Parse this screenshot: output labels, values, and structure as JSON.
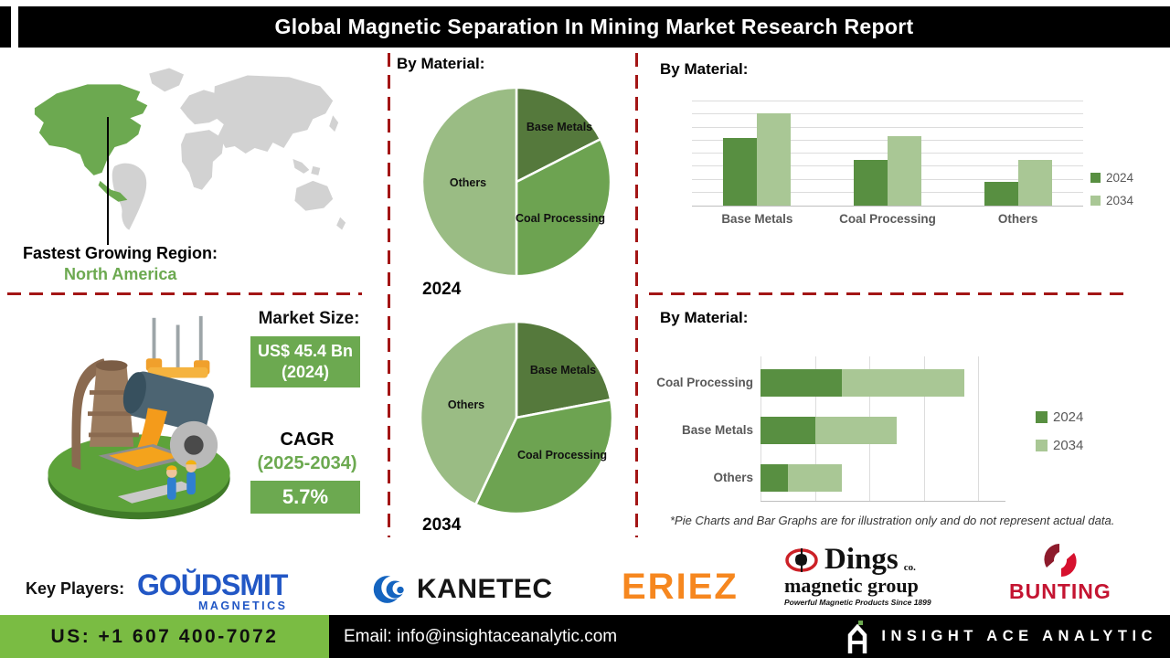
{
  "header": {
    "title": "Global Magnetic Separation In Mining Market Research Report"
  },
  "region": {
    "label": "Fastest Growing Region:",
    "value": "North America"
  },
  "market": {
    "size_label": "Market Size:",
    "size_value": "US$ 45.4 Bn",
    "size_year": "(2024)",
    "cagr_label": "CAGR",
    "cagr_period": "(2025-2034)",
    "cagr_value": "5.7%"
  },
  "colors": {
    "accent_green": "#6CA950",
    "footer_green": "#7ABC43",
    "dashed_red": "#A31515",
    "series_2024": "#588F41",
    "series_2034": "#A9C795",
    "map_region_green": "#6CA950",
    "map_gray": "#D2D2D2"
  },
  "chart_data": [
    {
      "id": "pie-2024",
      "type": "pie",
      "title": "By Material:",
      "year_label": "2024",
      "labels": [
        "Base Metals",
        "Coal Processing",
        "Others"
      ],
      "values": [
        17.5,
        32.5,
        50
      ],
      "colors": [
        "#55793C",
        "#6DA351",
        "#9ABC84"
      ],
      "note": "illustrative only"
    },
    {
      "id": "pie-2034",
      "type": "pie",
      "title": "",
      "year_label": "2034",
      "labels": [
        "Base Metals",
        "Coal Processing",
        "Others"
      ],
      "values": [
        22,
        35,
        43
      ],
      "colors": [
        "#55793C",
        "#6DA351",
        "#9ABC84"
      ],
      "note": "illustrative only"
    },
    {
      "id": "grouped-column-by-material",
      "type": "bar",
      "title": "By Material:",
      "categories": [
        "Base Metals",
        "Coal Processing",
        "Others"
      ],
      "series": [
        {
          "name": "2024",
          "values": [
            5.2,
            3.5,
            1.8
          ],
          "color": "#588F41"
        },
        {
          "name": "2034",
          "values": [
            7.1,
            5.3,
            3.5
          ],
          "color": "#A9C795"
        }
      ],
      "ylim": [
        0,
        8
      ],
      "gridlines": 8,
      "legend_position": "right",
      "ylabel": "",
      "xlabel": "",
      "note": "no axis value labels shown; illustrative only"
    },
    {
      "id": "stacked-horizontal-bar-by-material",
      "type": "bar",
      "orientation": "horizontal",
      "stacked": true,
      "title": "By Material:",
      "categories": [
        "Coal Processing",
        "Base Metals",
        "Others"
      ],
      "series": [
        {
          "name": "2024",
          "values": [
            1.5,
            1.0,
            0.5
          ],
          "color": "#588F41"
        },
        {
          "name": "2034",
          "values": [
            2.25,
            1.5,
            1.0
          ],
          "color": "#A9C795"
        }
      ],
      "xlim": [
        0,
        4.5
      ],
      "gridline_step": 1,
      "legend_position": "right",
      "note": "no axis value labels shown; illustrative only"
    }
  ],
  "disclaimer": "*Pie Charts and Bar Graphs are for illustration only and do not represent actual data.",
  "key_players": {
    "label": "Key Players:",
    "goudsmit": {
      "name": "GOŬDSMIT",
      "sub": "MAGNETICS"
    },
    "kanetec": {
      "name": "KANETEC"
    },
    "eriez": {
      "name": "ERIEZ"
    },
    "dings": {
      "name": "Dings",
      "co": "co.",
      "sub": "magnetic group",
      "tagline": "Powerful Magnetic Products Since 1899"
    },
    "bunting": {
      "name": "BUNTING"
    }
  },
  "footer": {
    "phone": "US: +1 607 400-7072",
    "email": "Email: info@insightaceanalytic.com",
    "brand": "INSIGHT ACE ANALYTIC"
  }
}
